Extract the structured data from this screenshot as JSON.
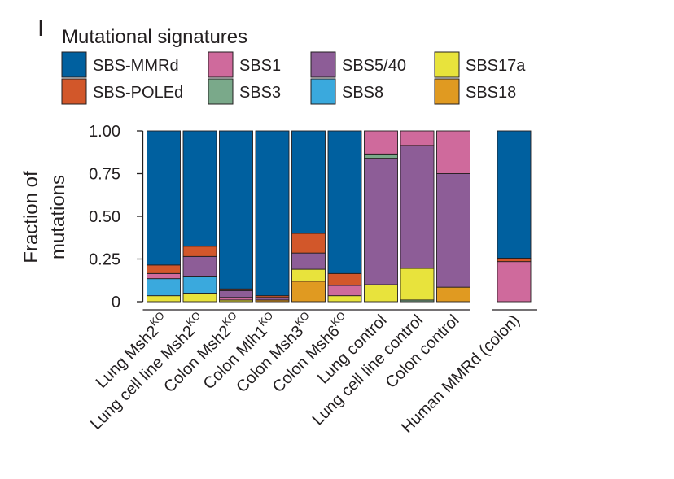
{
  "chart_data": {
    "type": "bar",
    "stacked": true,
    "panel_label": "l",
    "legend_title": "Mutational signatures",
    "legend_position": "top",
    "ylabel_lines": [
      "Fraction of",
      "mutations"
    ],
    "ylim": [
      0,
      1
    ],
    "yticks": [
      {
        "value": 0,
        "label": "0"
      },
      {
        "value": 0.25,
        "label": "0.25"
      },
      {
        "value": 0.5,
        "label": "0.50"
      },
      {
        "value": 0.75,
        "label": "0.75"
      },
      {
        "value": 1.0,
        "label": "1.00"
      }
    ],
    "signatures": [
      {
        "key": "SBS18",
        "label": "SBS18",
        "color": "#e09a21"
      },
      {
        "key": "SBS17a",
        "label": "SBS17a",
        "color": "#e8e33c"
      },
      {
        "key": "SBS3",
        "label": "SBS3",
        "color": "#7aa98a"
      },
      {
        "key": "SBS8",
        "label": "SBS8",
        "color": "#3aa9dd"
      },
      {
        "key": "SBS1",
        "label": "SBS1",
        "color": "#cf6a9c"
      },
      {
        "key": "SBS5/40",
        "label": "SBS5/40",
        "color": "#8d5d97"
      },
      {
        "key": "SBS-POLEd",
        "label": "SBS-POLEd",
        "color": "#d2572a"
      },
      {
        "key": "SBS-MMRd",
        "label": "SBS-MMRd",
        "color": "#00609f"
      }
    ],
    "legend_order": [
      "SBS-MMRd",
      "SBS-POLEd",
      "SBS1",
      "SBS3",
      "SBS5/40",
      "SBS8",
      "SBS17a",
      "SBS18"
    ],
    "bars": [
      {
        "label": "Lung Msh2",
        "sup": "KO",
        "group": 0,
        "stack": [
          [
            "SBS17a",
            0.035
          ],
          [
            "SBS8",
            0.1
          ],
          [
            "SBS1",
            0.03
          ],
          [
            "SBS-POLEd",
            0.05
          ],
          [
            "SBS-MMRd",
            0.785
          ]
        ]
      },
      {
        "label": "Lung cell line Msh2",
        "sup": "KO",
        "group": 0,
        "stack": [
          [
            "SBS17a",
            0.05
          ],
          [
            "SBS8",
            0.1
          ],
          [
            "SBS5/40",
            0.115
          ],
          [
            "SBS-POLEd",
            0.06
          ],
          [
            "SBS-MMRd",
            0.675
          ]
        ]
      },
      {
        "label": "Colon Msh2",
        "sup": "KO",
        "group": 0,
        "stack": [
          [
            "SBS17a",
            0.01
          ],
          [
            "SBS1",
            0.015
          ],
          [
            "SBS5/40",
            0.04
          ],
          [
            "SBS-POLEd",
            0.01
          ],
          [
            "SBS-MMRd",
            0.925
          ]
        ]
      },
      {
        "label": "Colon Mlh1",
        "sup": "KO",
        "group": 0,
        "stack": [
          [
            "SBS18",
            0.01
          ],
          [
            "SBS5/40",
            0.015
          ],
          [
            "SBS-POLEd",
            0.01
          ],
          [
            "SBS-MMRd",
            0.965
          ]
        ]
      },
      {
        "label": "Colon Msh3",
        "sup": "KO",
        "group": 0,
        "stack": [
          [
            "SBS18",
            0.12
          ],
          [
            "SBS17a",
            0.07
          ],
          [
            "SBS5/40",
            0.095
          ],
          [
            "SBS-POLEd",
            0.115
          ],
          [
            "SBS-MMRd",
            0.6
          ]
        ]
      },
      {
        "label": "Colon Msh6",
        "sup": "KO",
        "group": 0,
        "stack": [
          [
            "SBS17a",
            0.035
          ],
          [
            "SBS1",
            0.06
          ],
          [
            "SBS-POLEd",
            0.07
          ],
          [
            "SBS-MMRd",
            0.835
          ]
        ]
      },
      {
        "label": "Lung control",
        "sup": "",
        "group": 0,
        "stack": [
          [
            "SBS17a",
            0.1
          ],
          [
            "SBS5/40",
            0.74
          ],
          [
            "SBS3",
            0.025
          ],
          [
            "SBS1",
            0.135
          ]
        ]
      },
      {
        "label": "Lung cell line control",
        "sup": "",
        "group": 0,
        "stack": [
          [
            "SBS3",
            0.01
          ],
          [
            "SBS17a",
            0.185
          ],
          [
            "SBS5/40",
            0.72
          ],
          [
            "SBS1",
            0.085
          ]
        ]
      },
      {
        "label": "Colon control",
        "sup": "",
        "group": 0,
        "stack": [
          [
            "SBS18",
            0.085
          ],
          [
            "SBS5/40",
            0.665
          ],
          [
            "SBS1",
            0.25
          ]
        ]
      },
      {
        "label": "Human MMRd (colon)",
        "sup": "",
        "group": 1,
        "stack": [
          [
            "SBS1",
            0.235
          ],
          [
            "SBS-POLEd",
            0.02
          ],
          [
            "SBS-MMRd",
            0.745
          ]
        ]
      }
    ]
  }
}
